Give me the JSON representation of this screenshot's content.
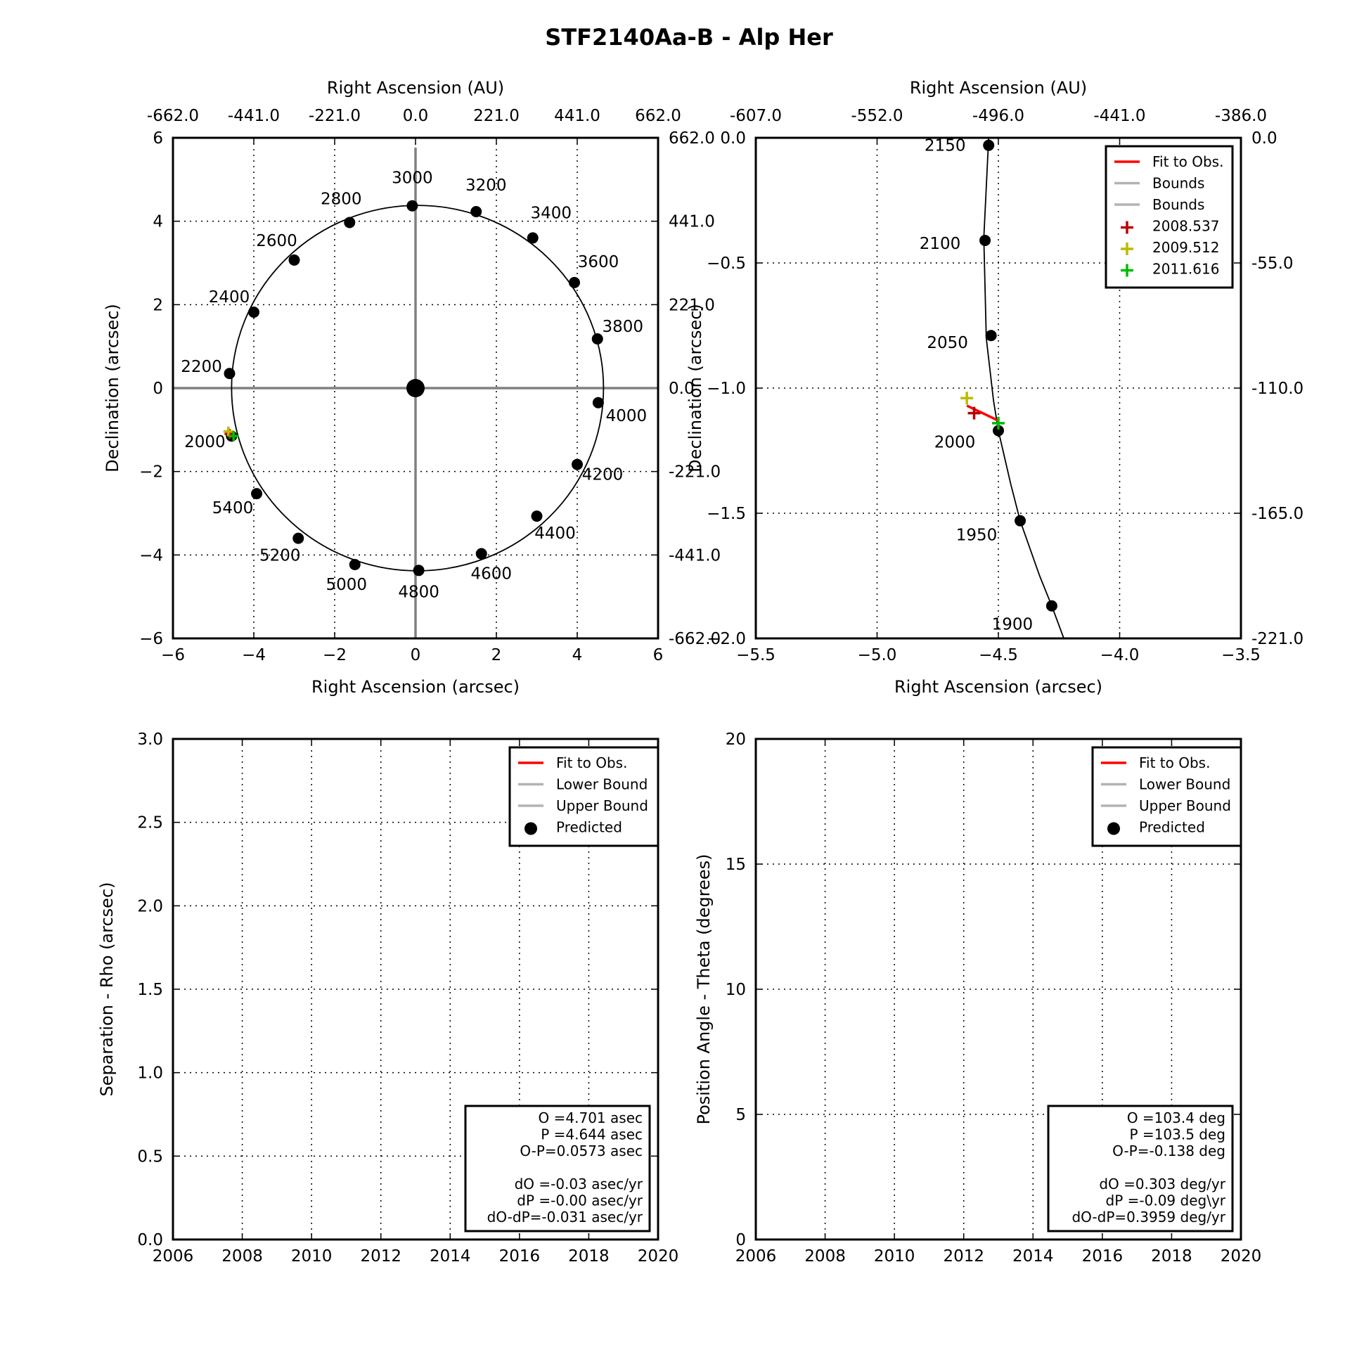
{
  "figure_title": "STF2140Aa-B - Alp Her",
  "colors": {
    "fit": "#ff0000",
    "bounds": "#b3b3b3",
    "obs_2008": "#bb0000",
    "obs_2009": "#bbbb00",
    "obs_2011": "#00bb00",
    "axis_gray": "#808080"
  },
  "chart_data": [
    {
      "id": "orbit-full",
      "type": "scatter",
      "title": "",
      "xlabel": "Right Ascension (arcsec)",
      "ylabel": "Declination (arcsec)",
      "top_xlabel": "Right Ascension (AU)",
      "right_ylabel": "",
      "xlim": [
        -6,
        6
      ],
      "ylim": [
        -6,
        6
      ],
      "xticks": [
        "−6",
        "−4",
        "−2",
        "0",
        "2",
        "4",
        "6"
      ],
      "yticks": [
        "−6",
        "−4",
        "−2",
        "0",
        "2",
        "4",
        "6"
      ],
      "top_ticks": [
        "-662.0",
        "-441.0",
        "-221.0",
        "0.0",
        "221.0",
        "441.0",
        "662.0"
      ],
      "right_ticks": [
        "-662.0",
        "-441.0",
        "-221.0",
        "0.0",
        "221.0",
        "441.0",
        "662.0"
      ],
      "grid": true,
      "primary_star": [
        0,
        0
      ],
      "predicted": [
        {
          "label": "2000",
          "x": -4.55,
          "y": -1.15
        },
        {
          "label": "2200",
          "x": -4.6,
          "y": 0.35
        },
        {
          "label": "2400",
          "x": -4.0,
          "y": 1.82
        },
        {
          "label": "2600",
          "x": -3.0,
          "y": 3.07
        },
        {
          "label": "2800",
          "x": -1.63,
          "y": 3.97
        },
        {
          "label": "3000",
          "x": -0.08,
          "y": 4.37
        },
        {
          "label": "3200",
          "x": 1.5,
          "y": 4.23
        },
        {
          "label": "3400",
          "x": 2.9,
          "y": 3.6
        },
        {
          "label": "3600",
          "x": 3.93,
          "y": 2.53
        },
        {
          "label": "3800",
          "x": 4.5,
          "y": 1.18
        },
        {
          "label": "4000",
          "x": 4.52,
          "y": -0.35
        },
        {
          "label": "4200",
          "x": 4.0,
          "y": -1.83
        },
        {
          "label": "4400",
          "x": 3.0,
          "y": -3.07
        },
        {
          "label": "4600",
          "x": 1.63,
          "y": -3.97
        },
        {
          "label": "4800",
          "x": 0.08,
          "y": -4.37
        },
        {
          "label": "5000",
          "x": -1.5,
          "y": -4.23
        },
        {
          "label": "5200",
          "x": -2.9,
          "y": -3.6
        },
        {
          "label": "5400",
          "x": -3.93,
          "y": -2.53
        }
      ],
      "observations": [
        {
          "name": "2008.537",
          "x": -4.6,
          "y": -1.1,
          "color": "#bb0000"
        },
        {
          "name": "2009.512",
          "x": -4.63,
          "y": -1.04,
          "color": "#bbbb00"
        },
        {
          "name": "2011.616",
          "x": -4.5,
          "y": -1.15,
          "color": "#00bb00"
        }
      ]
    },
    {
      "id": "orbit-zoom",
      "type": "scatter",
      "title": "",
      "xlabel": "Right Ascension (arcsec)",
      "ylabel": "Declination (arcsec)",
      "top_xlabel": "Right Ascension (AU)",
      "xlim": [
        -5.5,
        -3.5
      ],
      "ylim": [
        -2.0,
        0.0
      ],
      "xticks": [
        "−5.5",
        "−5.0",
        "−4.5",
        "−4.0",
        "−3.5"
      ],
      "yticks": [
        "−2.0",
        "−1.5",
        "−1.0",
        "−0.5",
        "0.0"
      ],
      "top_ticks": [
        "-607.0",
        "-552.0",
        "-496.0",
        "-441.0",
        "-386.0"
      ],
      "right_ticks": [
        "-221.0",
        "-165.0",
        "-110.0",
        "-55.0",
        "0.0"
      ],
      "grid": true,
      "legend": {
        "placement": "top-right",
        "entries": [
          {
            "label": "Fit to Obs.",
            "kind": "line",
            "color": "#ff0000"
          },
          {
            "label": "Bounds",
            "kind": "line",
            "color": "#b3b3b3"
          },
          {
            "label": "Bounds",
            "kind": "line",
            "color": "#b3b3b3"
          },
          {
            "label": "2008.537",
            "kind": "plus",
            "color": "#bb0000"
          },
          {
            "label": "2009.512",
            "kind": "plus",
            "color": "#bbbb00"
          },
          {
            "label": "2011.616",
            "kind": "plus",
            "color": "#00bb00"
          }
        ]
      },
      "orbit_path": [
        {
          "x": -4.54,
          "y": 0.0
        },
        {
          "x": -4.56,
          "y": -0.4
        },
        {
          "x": -4.55,
          "y": -0.8
        },
        {
          "x": -4.52,
          "y": -1.05
        },
        {
          "x": -4.5,
          "y": -1.17
        },
        {
          "x": -4.45,
          "y": -1.38
        },
        {
          "x": -4.41,
          "y": -1.53
        },
        {
          "x": -4.33,
          "y": -1.75
        },
        {
          "x": -4.28,
          "y": -1.87
        },
        {
          "x": -4.23,
          "y": -2.0
        }
      ],
      "predicted": [
        {
          "label": "2150",
          "x": -4.54,
          "y": -0.03
        },
        {
          "label": "2100",
          "x": -4.555,
          "y": -0.41
        },
        {
          "label": "2050",
          "x": -4.53,
          "y": -0.79
        },
        {
          "label": "2000",
          "x": -4.5,
          "y": -1.17
        },
        {
          "label": "1950",
          "x": -4.41,
          "y": -1.53
        },
        {
          "label": "1900",
          "x": -4.28,
          "y": -1.87
        }
      ],
      "fit_line": [
        {
          "x": -4.63,
          "y": -1.07
        },
        {
          "x": -4.5,
          "y": -1.13
        }
      ],
      "observations": [
        {
          "name": "2008.537",
          "x": -4.6,
          "y": -1.1,
          "color": "#bb0000"
        },
        {
          "name": "2009.512",
          "x": -4.63,
          "y": -1.04,
          "color": "#bbbb00"
        },
        {
          "name": "2011.616",
          "x": -4.5,
          "y": -1.14,
          "color": "#00bb00"
        }
      ]
    },
    {
      "id": "separation",
      "type": "line",
      "title": "",
      "xlabel": "",
      "ylabel": "Separation - Rho (arcsec)",
      "xlim": [
        2006,
        2020
      ],
      "ylim": [
        0,
        3
      ],
      "xticks": [
        "2006",
        "2008",
        "2010",
        "2012",
        "2014",
        "2016",
        "2018",
        "2020"
      ],
      "yticks": [
        "0.0",
        "0.5",
        "1.0",
        "1.5",
        "2.0",
        "2.5",
        "3.0"
      ],
      "grid": true,
      "series": [],
      "legend": {
        "placement": "top-right",
        "entries": [
          {
            "label": "Fit to Obs.",
            "kind": "line",
            "color": "#ff0000"
          },
          {
            "label": "Lower Bound",
            "kind": "line",
            "color": "#b3b3b3"
          },
          {
            "label": "Upper Bound",
            "kind": "line",
            "color": "#b3b3b3"
          },
          {
            "label": "Predicted",
            "kind": "dot",
            "color": "#000000"
          }
        ]
      },
      "stats": [
        "O  =4.701 asec",
        "P  =4.644 asec",
        "O-P=0.0573 asec",
        "",
        "dO  =-0.03 asec/yr",
        "dP  =-0.00 asec/yr",
        "dO-dP=-0.031 asec/yr"
      ]
    },
    {
      "id": "position-angle",
      "type": "line",
      "title": "",
      "xlabel": "",
      "ylabel": "Position Angle - Theta (degrees)",
      "xlim": [
        2006,
        2020
      ],
      "ylim": [
        0,
        20
      ],
      "xticks": [
        "2006",
        "2008",
        "2010",
        "2012",
        "2014",
        "2016",
        "2018",
        "2020"
      ],
      "yticks": [
        "0",
        "5",
        "10",
        "15",
        "20"
      ],
      "grid": true,
      "series": [],
      "legend": {
        "placement": "top-right",
        "entries": [
          {
            "label": "Fit to Obs.",
            "kind": "line",
            "color": "#ff0000"
          },
          {
            "label": "Lower Bound",
            "kind": "line",
            "color": "#b3b3b3"
          },
          {
            "label": "Upper Bound",
            "kind": "line",
            "color": "#b3b3b3"
          },
          {
            "label": "Predicted",
            "kind": "dot",
            "color": "#000000"
          }
        ]
      },
      "stats": [
        "O  =103.4 deg",
        "P  =103.5 deg",
        "O-P=-0.138 deg",
        "",
        "dO  =0.303 deg/yr",
        "dP  =-0.09 deg\\yr",
        "dO-dP=0.3959 deg/yr"
      ]
    }
  ]
}
